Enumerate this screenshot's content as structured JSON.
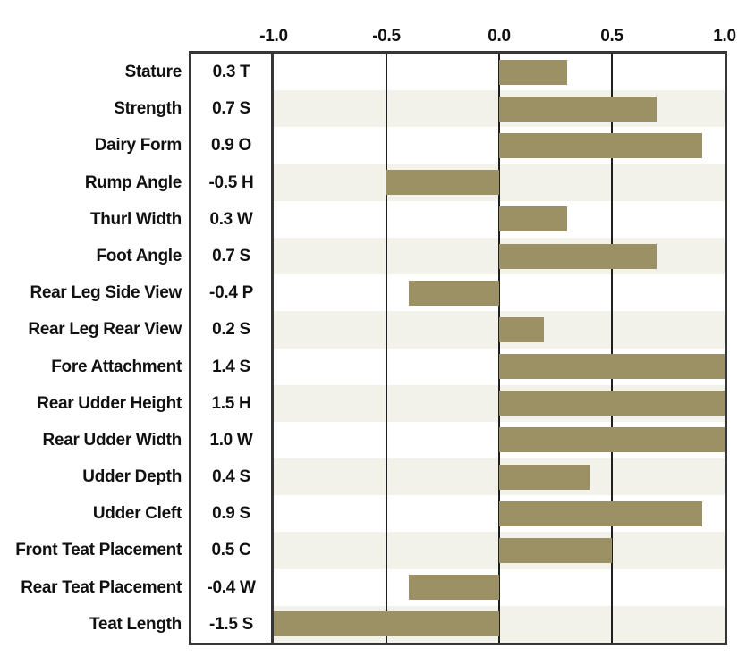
{
  "chart_data": {
    "type": "bar",
    "orientation": "horizontal",
    "title": "",
    "xlabel": "",
    "ylabel": "",
    "xlim": [
      -1.0,
      1.0
    ],
    "x_tick_labels": [
      "-1.0",
      "-0.5",
      "0.0",
      "0.5",
      "1.0"
    ],
    "x_tick_values": [
      -1.0,
      -0.5,
      0.0,
      0.5,
      1.0
    ],
    "gridlines_at": [
      -0.5,
      0.0,
      0.5
    ],
    "grid": true,
    "legend": false,
    "categories": [
      "Stature",
      "Strength",
      "Dairy Form",
      "Rump Angle",
      "Thurl Width",
      "Foot Angle",
      "Rear Leg Side View",
      "Rear Leg Rear View",
      "Fore Attachment",
      "Rear Udder Height",
      "Rear Udder Width",
      "Udder Depth",
      "Udder Cleft",
      "Front Teat Placement",
      "Rear Teat Placement",
      "Teat Length"
    ],
    "value_labels": [
      "0.3 T",
      "0.7 S",
      "0.9 O",
      "-0.5 H",
      "0.3 W",
      "0.7 S",
      "-0.4 P",
      "0.2 S",
      "1.4 S",
      "1.5 H",
      "1.0 W",
      "0.4 S",
      "0.9 S",
      "0.5 C",
      "-0.4 W",
      "-1.5 S"
    ],
    "values": [
      0.3,
      0.7,
      0.9,
      -0.5,
      0.3,
      0.7,
      -0.4,
      0.2,
      1.4,
      1.5,
      1.0,
      0.4,
      0.9,
      0.5,
      -0.4,
      -1.5
    ],
    "bars_clamped_to_axis_range": true,
    "colors": {
      "bar": "#9b9165",
      "stripe": "#f2f1ea",
      "border": "#363636",
      "gridline": "#1f1f1f",
      "text": "#111111",
      "background": "#ffffff"
    }
  }
}
